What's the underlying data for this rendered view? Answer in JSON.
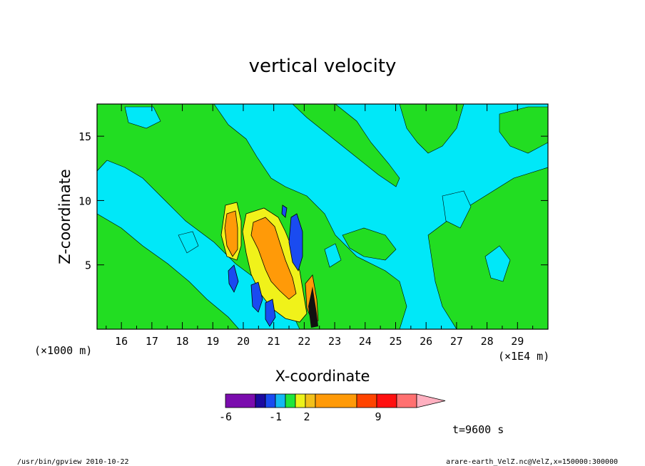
{
  "chart_data": {
    "type": "heatmap",
    "title": "vertical velocity",
    "xlabel": "X-coordinate",
    "ylabel": "Z-coordinate",
    "x_scale_note": "(×1E4 m)",
    "y_scale_note": "(×1000 m)",
    "x_range": [
      15.2,
      30.0
    ],
    "y_range": [
      0.0,
      17.5
    ],
    "x_ticks": [
      "16",
      "17",
      "18",
      "19",
      "20",
      "21",
      "22",
      "23",
      "24",
      "25",
      "26",
      "27",
      "28",
      "29"
    ],
    "y_ticks": [
      "5",
      "10",
      "15"
    ],
    "grid": false,
    "colorbar": {
      "labels": [
        "-6",
        "-1",
        "2",
        "9"
      ],
      "colors": [
        "#7b0cae",
        "#1c0aa0",
        "#1a4bf0",
        "#14b8f2",
        "#1fe63c",
        "#ecf21a",
        "#f2c01a",
        "#ff9a08",
        "#ff4400",
        "#ff1010",
        "#ff7070",
        "#ffb0c0"
      ]
    },
    "time_label": "t=9600 s"
  },
  "footer": {
    "left": "/usr/bin/gpview   2010-10-22",
    "right": "arare-earth_VelZ.nc@VelZ,x=150000:300000"
  }
}
